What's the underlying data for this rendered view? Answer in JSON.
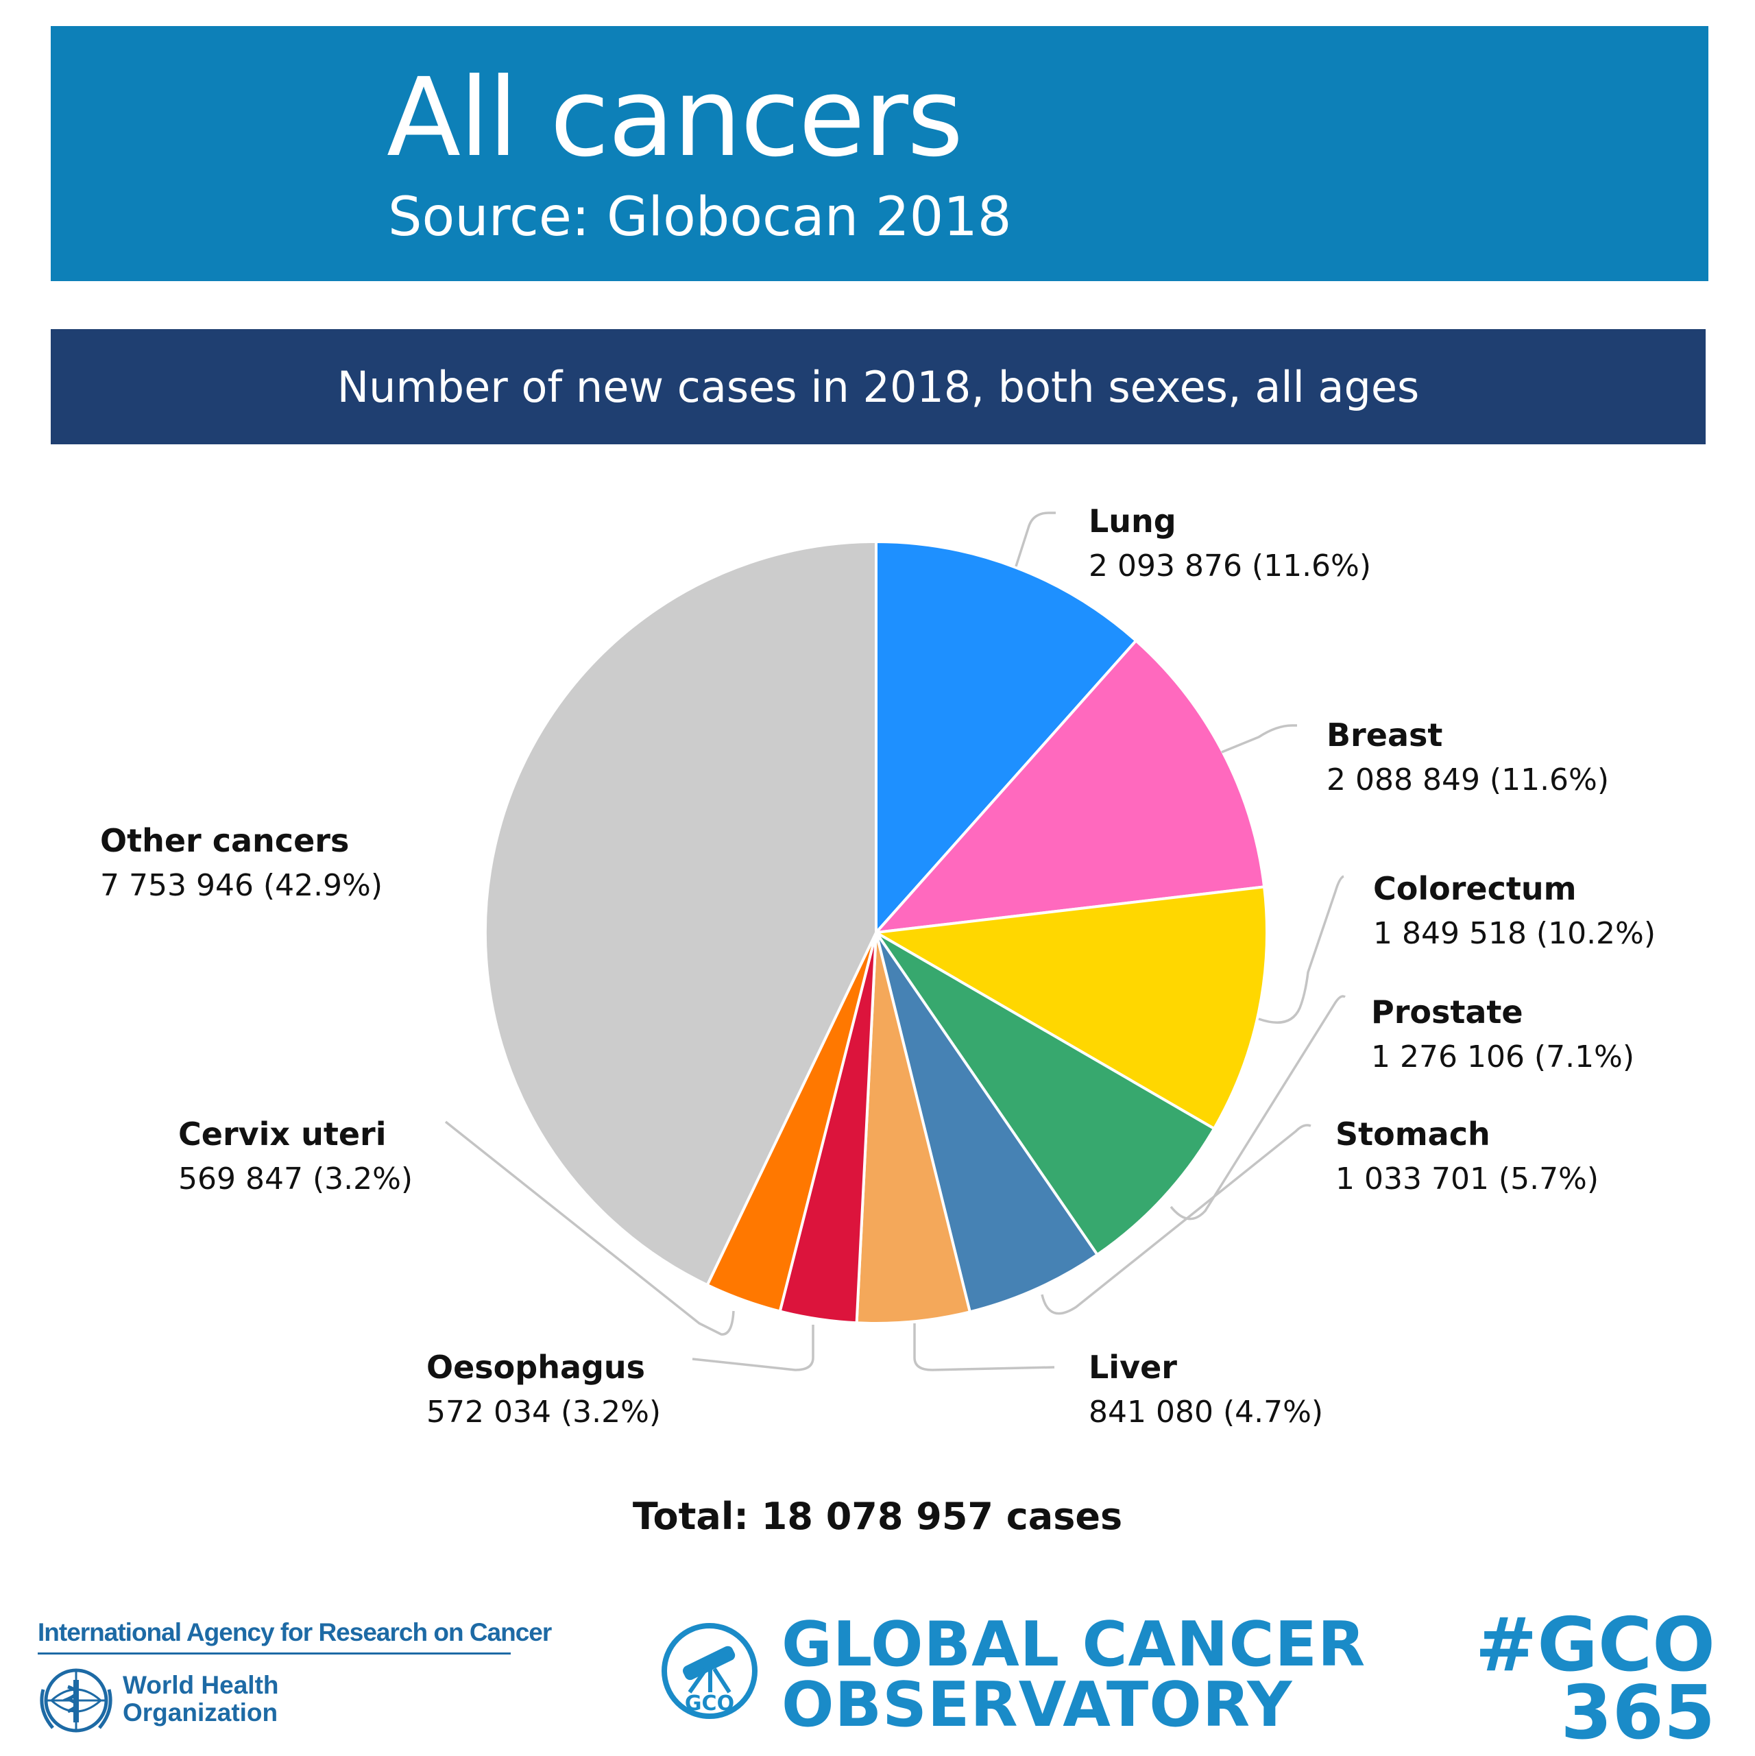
{
  "header": {
    "title": "All cancers",
    "subtitle": "Source: Globocan 2018",
    "color": "#0d80b8"
  },
  "subheader": {
    "text": "Number of new cases in 2018, both sexes, all ages",
    "color": "#1f3f71"
  },
  "chart_data": {
    "type": "pie",
    "title": "Number of new cases in 2018, both sexes, all ages",
    "slices": [
      {
        "label": "Lung",
        "value": 2093876,
        "value_text": "2 093 876 (11.6%)",
        "percent": 11.6,
        "color": "#1e90ff"
      },
      {
        "label": "Breast",
        "value": 2088849,
        "value_text": "2 088 849 (11.6%)",
        "percent": 11.6,
        "color": "#ff69be"
      },
      {
        "label": "Colorectum",
        "value": 1849518,
        "value_text": "1 849 518 (10.2%)",
        "percent": 10.2,
        "color": "#ffd700"
      },
      {
        "label": "Prostate",
        "value": 1276106,
        "value_text": "1 276 106 (7.1%)",
        "percent": 7.1,
        "color": "#37a86e"
      },
      {
        "label": "Stomach",
        "value": 1033701,
        "value_text": "1 033 701 (5.7%)",
        "percent": 5.7,
        "color": "#4682b4"
      },
      {
        "label": "Liver",
        "value": 841080,
        "value_text": "841 080 (4.7%)",
        "percent": 4.7,
        "color": "#f4a85a"
      },
      {
        "label": "Oesophagus",
        "value": 572034,
        "value_text": "572 034 (3.2%)",
        "percent": 3.2,
        "color": "#dc143c"
      },
      {
        "label": "Cervix uteri",
        "value": 569847,
        "value_text": "569 847 (3.2%)",
        "percent": 3.2,
        "color": "#ff7800"
      },
      {
        "label": "Other cancers",
        "value": 7753946,
        "value_text": "7 753 946 (42.9%)",
        "percent": 42.9,
        "color": "#cccccc"
      }
    ],
    "total_text": "Total: 18 078 957 cases"
  },
  "footer": {
    "iarc_name": "International Agency for Research on Cancer",
    "who_line1": "World Health",
    "who_line2": "Organization",
    "who_emblem_icon": "who-emblem-icon",
    "gco_logo_icon": "telescope-icon",
    "gco_logo_text": "GCO",
    "gco_line1": "GLOBAL CANCER",
    "gco_line2": "OBSERVATORY",
    "hashtag_line1": "#GCO",
    "hashtag_line2": "365",
    "brand_color": "#1a8bc8"
  }
}
